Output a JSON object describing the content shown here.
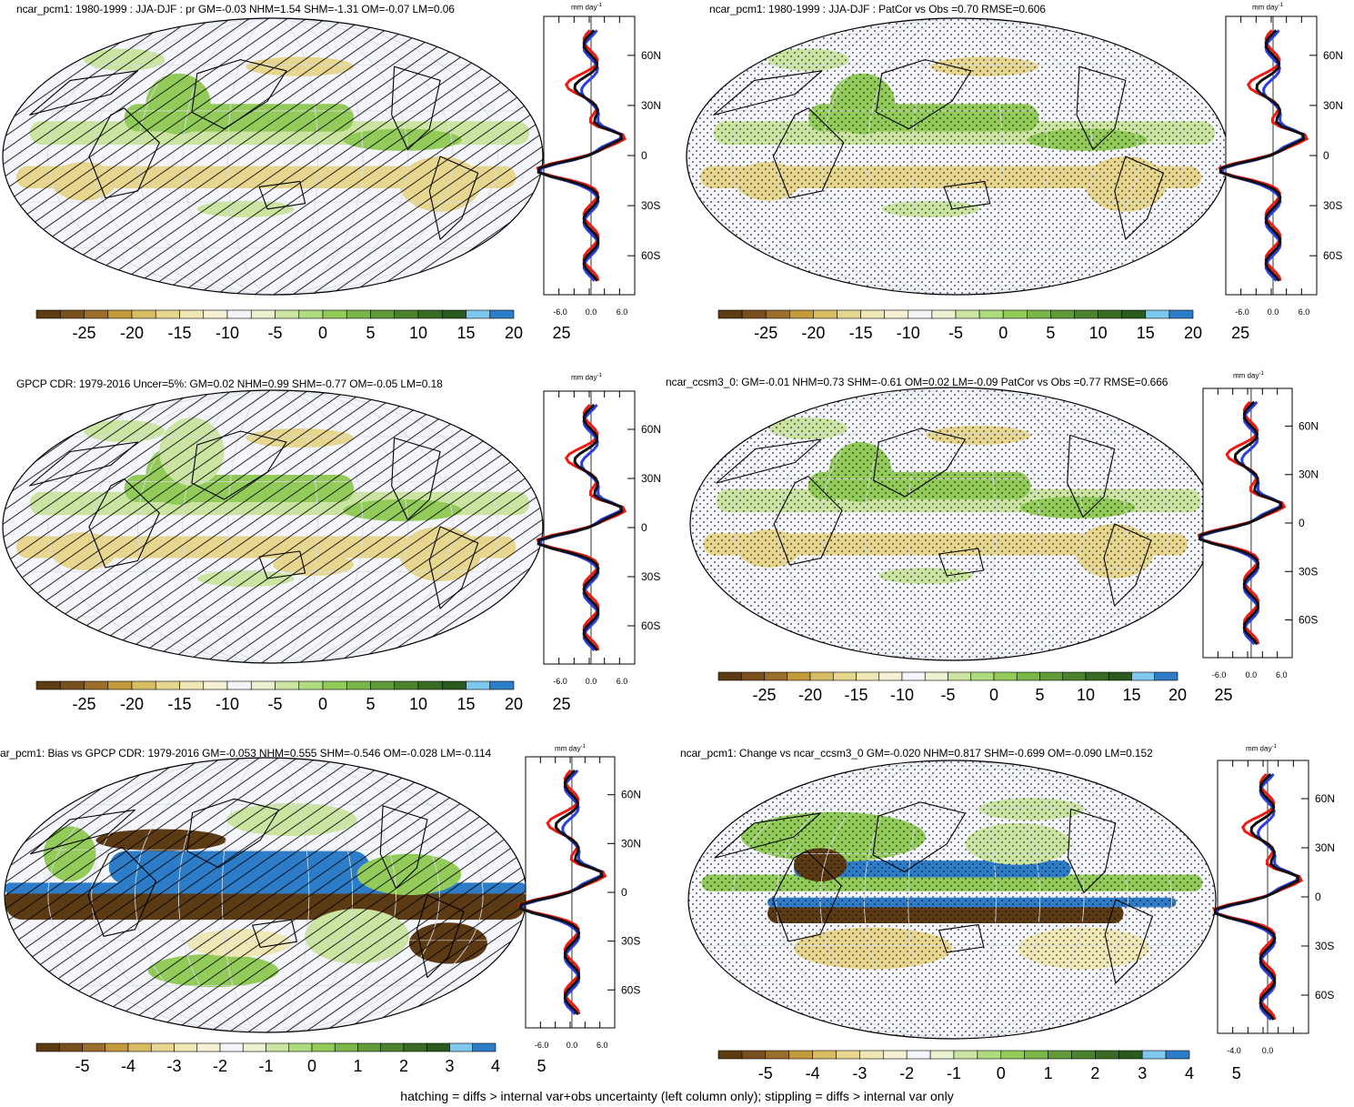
{
  "palette": [
    "#5b3a14",
    "#7a4f1e",
    "#9c6e2c",
    "#c29a3c",
    "#d8bc64",
    "#e7d68f",
    "#f0e7b6",
    "#f6f0d4",
    "#f4f5fb",
    "#eaf2cf",
    "#cbe4a1",
    "#addb7e",
    "#93cb5b",
    "#79b548",
    "#619a39",
    "#4b822e",
    "#3a6b25",
    "#2a5a1d",
    "#7ec8ee",
    "#2d7cc8"
  ],
  "line_colors": {
    "obs": "#f11a13",
    "model": "#111111",
    "reference": "#2b3fe0"
  },
  "legend_ticks": {
    "full": [
      "-25",
      "-20",
      "-15",
      "-10",
      "-5",
      "0",
      "5",
      "10",
      "15",
      "20",
      "25"
    ],
    "bias": [
      "-5",
      "-4",
      "-3",
      "-2",
      "-1",
      "0",
      "1",
      "2",
      "3",
      "4",
      "5"
    ]
  },
  "lat_labels": [
    "60N",
    "30N",
    "0",
    "30S",
    "60S"
  ],
  "unit_label": "mm day",
  "unit_exp": "-1",
  "panels": [
    {
      "id": "p1",
      "title": "ncar_pcm1: 1980-1999 : JJA-DJF : pr GM=-0.03 NHM=1.54 SHM=-1.31 OM=-0.07 LM=0.06",
      "xticks": [
        "-6.0",
        "0.0",
        "6.0"
      ]
    },
    {
      "id": "p2",
      "title": "ncar_pcm1: 1980-1999 : JJA-DJF : PatCor vs Obs =0.70 RMSE=0.606",
      "xticks": [
        "-6.0",
        "0.0",
        "6.0"
      ]
    },
    {
      "id": "p3",
      "title": "GPCP CDR: 1979-2016 Uncer=5%: GM=0.02 NHM=0.99 SHM=-0.77 OM=-0.05 LM=0.18",
      "xticks": [
        "-6.0",
        "0.0",
        "6.0"
      ]
    },
    {
      "id": "p4",
      "title": "ncar_ccsm3_0: GM=-0.01 NHM=0.73 SHM=-0.61 OM=0.02 LM=-0.09 PatCor vs Obs =0.77 RMSE=0.666",
      "xticks": [
        "-6.0",
        "0.0",
        "6.0"
      ]
    },
    {
      "id": "p5",
      "title": "ar_pcm1: Bias vs GPCP CDR: 1979-2016 GM=-0.053 NHM=0.555 SHM=-0.546 OM=-0.028 LM=-0.114",
      "xticks": [
        "-6.0",
        "0.0",
        "6.0"
      ]
    },
    {
      "id": "p6",
      "title": "ncar_pcm1: Change vs ncar_ccsm3_0 GM=-0.020 NHM=0.817 SHM=-0.699 OM=-0.090 LM=0.152",
      "xticks": [
        "-4.0",
        "0.0"
      ]
    }
  ],
  "footer": "hatching = diffs > internal var+obs uncertainty (left column only); stippling = diffs > internal var only"
}
